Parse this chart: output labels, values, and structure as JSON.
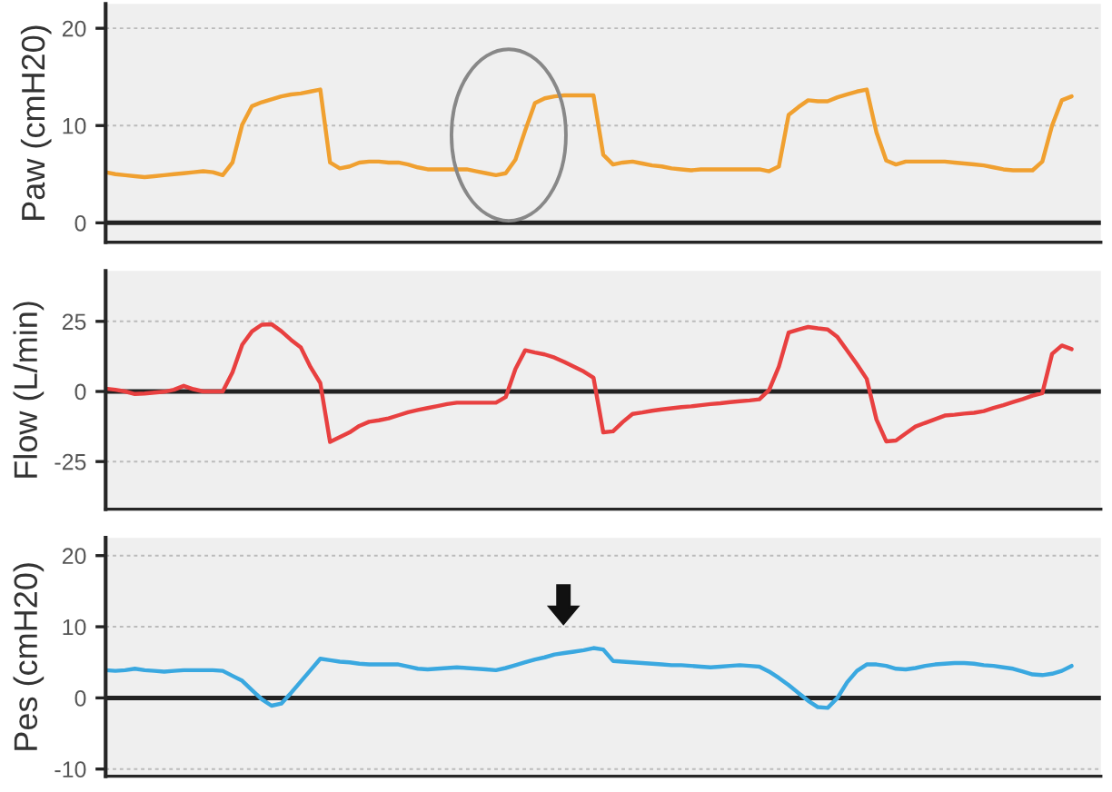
{
  "chart_data": [
    {
      "type": "line",
      "ylabel": "Paw (cmH20)",
      "ylim": [
        -2,
        22.5
      ],
      "yticks": [
        0,
        10,
        20
      ],
      "grid": "y",
      "tick_labels": "y",
      "categories": [
        null,
        null,
        null,
        null,
        null,
        null,
        null,
        null,
        null,
        null,
        null,
        null,
        null,
        null,
        null,
        null,
        null,
        null,
        null,
        null,
        null,
        null,
        null,
        null,
        null,
        null,
        null,
        null,
        null,
        null,
        null,
        null,
        null,
        null,
        null,
        null,
        null,
        null,
        null,
        null,
        null,
        null,
        null,
        null,
        null,
        null,
        null,
        null,
        null,
        null,
        null,
        null,
        null,
        null,
        null,
        null,
        null,
        null,
        null,
        null,
        null,
        null,
        null,
        null,
        null,
        null,
        null,
        null,
        null,
        null,
        null,
        null,
        null,
        null,
        null,
        null,
        null,
        null,
        null,
        null,
        null,
        null,
        null,
        null,
        null,
        null,
        null,
        null,
        null,
        null,
        null,
        null,
        null,
        null,
        null,
        null,
        null,
        null,
        null,
        null
      ],
      "ref_lines": [
        {
          "axis": "y",
          "value": 0,
          "color": "#222222"
        }
      ],
      "series": [
        {
          "color": "#f0a030",
          "values": [
            5.2,
            5.0,
            4.9,
            4.8,
            4.7,
            4.8,
            4.9,
            5.0,
            5.1,
            5.2,
            5.3,
            5.2,
            4.9,
            6.2,
            10.1,
            12.0,
            12.4,
            12.7,
            13.0,
            13.2,
            13.3,
            13.5,
            13.7,
            6.2,
            5.6,
            5.8,
            6.2,
            6.3,
            6.3,
            6.2,
            6.2,
            6.0,
            5.7,
            5.5,
            5.5,
            5.5,
            5.5,
            5.5,
            5.3,
            5.1,
            4.9,
            5.1,
            6.5,
            9.5,
            12.3,
            12.8,
            13.0,
            13.1,
            13.1,
            13.1,
            13.1,
            7.0,
            6.0,
            6.2,
            6.3,
            6.1,
            5.9,
            5.8,
            5.6,
            5.5,
            5.4,
            5.5,
            5.5,
            5.5,
            5.5,
            5.5,
            5.5,
            5.5,
            5.3,
            5.8,
            11.1,
            11.9,
            12.6,
            12.5,
            12.5,
            12.9,
            13.2,
            13.5,
            13.7,
            9.3,
            6.4,
            6.0,
            6.3,
            6.3,
            6.3,
            6.3,
            6.3,
            6.2,
            6.1,
            6.0,
            5.9,
            5.7,
            5.5,
            5.4,
            5.4,
            5.4,
            6.3,
            10.0,
            12.6,
            13.0
          ]
        }
      ]
    },
    {
      "type": "line",
      "ylabel": "Flow (L/min)",
      "ylim": [
        -42,
        43
      ],
      "yticks": [
        -25,
        0,
        25
      ],
      "grid": "y",
      "tick_labels": "y",
      "categories": [
        null,
        null,
        null,
        null,
        null,
        null,
        null,
        null,
        null,
        null,
        null,
        null,
        null,
        null,
        null,
        null,
        null,
        null,
        null,
        null,
        null,
        null,
        null,
        null,
        null,
        null,
        null,
        null,
        null,
        null,
        null,
        null,
        null,
        null,
        null,
        null,
        null,
        null,
        null,
        null,
        null,
        null,
        null,
        null,
        null,
        null,
        null,
        null,
        null,
        null,
        null,
        null,
        null,
        null,
        null,
        null,
        null,
        null,
        null,
        null,
        null,
        null,
        null,
        null,
        null,
        null,
        null,
        null,
        null,
        null,
        null,
        null,
        null,
        null,
        null,
        null,
        null,
        null,
        null,
        null,
        null,
        null,
        null,
        null,
        null,
        null,
        null,
        null,
        null,
        null,
        null,
        null,
        null,
        null,
        null,
        null,
        null,
        null,
        null,
        null
      ],
      "ref_lines": [
        {
          "axis": "y",
          "value": 0,
          "color": "#222222"
        }
      ],
      "series": [
        {
          "color": "#e84040",
          "values": [
            1,
            0.6,
            0,
            -0.9,
            -0.7,
            -0.4,
            -0.1,
            0.6,
            2,
            0.8,
            0,
            0,
            0,
            6.8,
            16.7,
            21.4,
            23.8,
            24,
            21.5,
            18.4,
            15.7,
            8.7,
            3,
            -18,
            -16.3,
            -14.6,
            -12.3,
            -10.8,
            -10.3,
            -9.6,
            -8.5,
            -7.4,
            -6.6,
            -5.9,
            -5.2,
            -4.5,
            -4,
            -4,
            -4,
            -4,
            -4,
            -2,
            8,
            14.7,
            13.9,
            13.2,
            12.1,
            10.5,
            8.8,
            7.1,
            4.9,
            -14.6,
            -14.2,
            -10.9,
            -8,
            -7.5,
            -6.9,
            -6.4,
            -6,
            -5.6,
            -5.3,
            -4.9,
            -4.5,
            -4.2,
            -3.8,
            -3.5,
            -3.2,
            -2.8,
            0.5,
            8.9,
            21,
            22.1,
            23,
            22.5,
            22.1,
            19.4,
            14.6,
            9.7,
            4.5,
            -10,
            -17.8,
            -17.5,
            -15,
            -12.5,
            -11.2,
            -9.9,
            -8.6,
            -8.3,
            -7.9,
            -7.6,
            -7,
            -5.9,
            -4.9,
            -3.8,
            -2.7,
            -1.5,
            -0.6,
            13.4,
            16.4,
            15.1
          ]
        }
      ]
    },
    {
      "type": "line",
      "ylabel": "Pes (cmH20)",
      "ylim": [
        -11,
        22.5
      ],
      "yticks": [
        -10,
        0,
        10,
        20
      ],
      "grid": "y",
      "tick_labels": "y",
      "categories": [
        null,
        null,
        null,
        null,
        null,
        null,
        null,
        null,
        null,
        null,
        null,
        null,
        null,
        null,
        null,
        null,
        null,
        null,
        null,
        null,
        null,
        null,
        null,
        null,
        null,
        null,
        null,
        null,
        null,
        null,
        null,
        null,
        null,
        null,
        null,
        null,
        null,
        null,
        null,
        null,
        null,
        null,
        null,
        null,
        null,
        null,
        null,
        null,
        null,
        null,
        null,
        null,
        null,
        null,
        null,
        null,
        null,
        null,
        null,
        null,
        null,
        null,
        null,
        null,
        null,
        null,
        null,
        null,
        null,
        null,
        null,
        null,
        null,
        null,
        null,
        null,
        null,
        null,
        null,
        null,
        null,
        null,
        null,
        null,
        null,
        null,
        null,
        null,
        null,
        null,
        null,
        null,
        null,
        null,
        null,
        null,
        null,
        null,
        null,
        null
      ],
      "ref_lines": [
        {
          "axis": "y",
          "value": 0,
          "color": "#222222"
        }
      ],
      "series": [
        {
          "color": "#3aa8e0",
          "values": [
            3.9,
            3.8,
            3.9,
            4.1,
            3.9,
            3.8,
            3.7,
            3.8,
            3.9,
            3.9,
            3.9,
            3.9,
            3.8,
            3.1,
            2.4,
            1.1,
            -0.2,
            -1.1,
            -0.8,
            0.7,
            2.3,
            3.9,
            5.5,
            5.3,
            5.1,
            5.0,
            4.8,
            4.7,
            4.7,
            4.7,
            4.7,
            4.4,
            4.1,
            4.0,
            4.1,
            4.2,
            4.3,
            4.2,
            4.1,
            4.0,
            3.9,
            4.2,
            4.6,
            5.0,
            5.4,
            5.7,
            6.1,
            6.3,
            6.5,
            6.7,
            7.0,
            6.8,
            5.2,
            5.1,
            5.0,
            4.9,
            4.8,
            4.7,
            4.6,
            4.6,
            4.5,
            4.4,
            4.3,
            4.4,
            4.5,
            4.6,
            4.5,
            4.4,
            3.7,
            2.8,
            1.8,
            0.7,
            -0.4,
            -1.3,
            -1.4,
            0,
            2.2,
            3.8,
            4.7,
            4.7,
            4.5,
            4.1,
            4.0,
            4.2,
            4.5,
            4.7,
            4.8,
            4.9,
            4.9,
            4.8,
            4.6,
            4.5,
            4.3,
            4.1,
            3.7,
            3.3,
            3.2,
            3.4,
            3.8,
            4.5
          ]
        }
      ]
    }
  ]
}
